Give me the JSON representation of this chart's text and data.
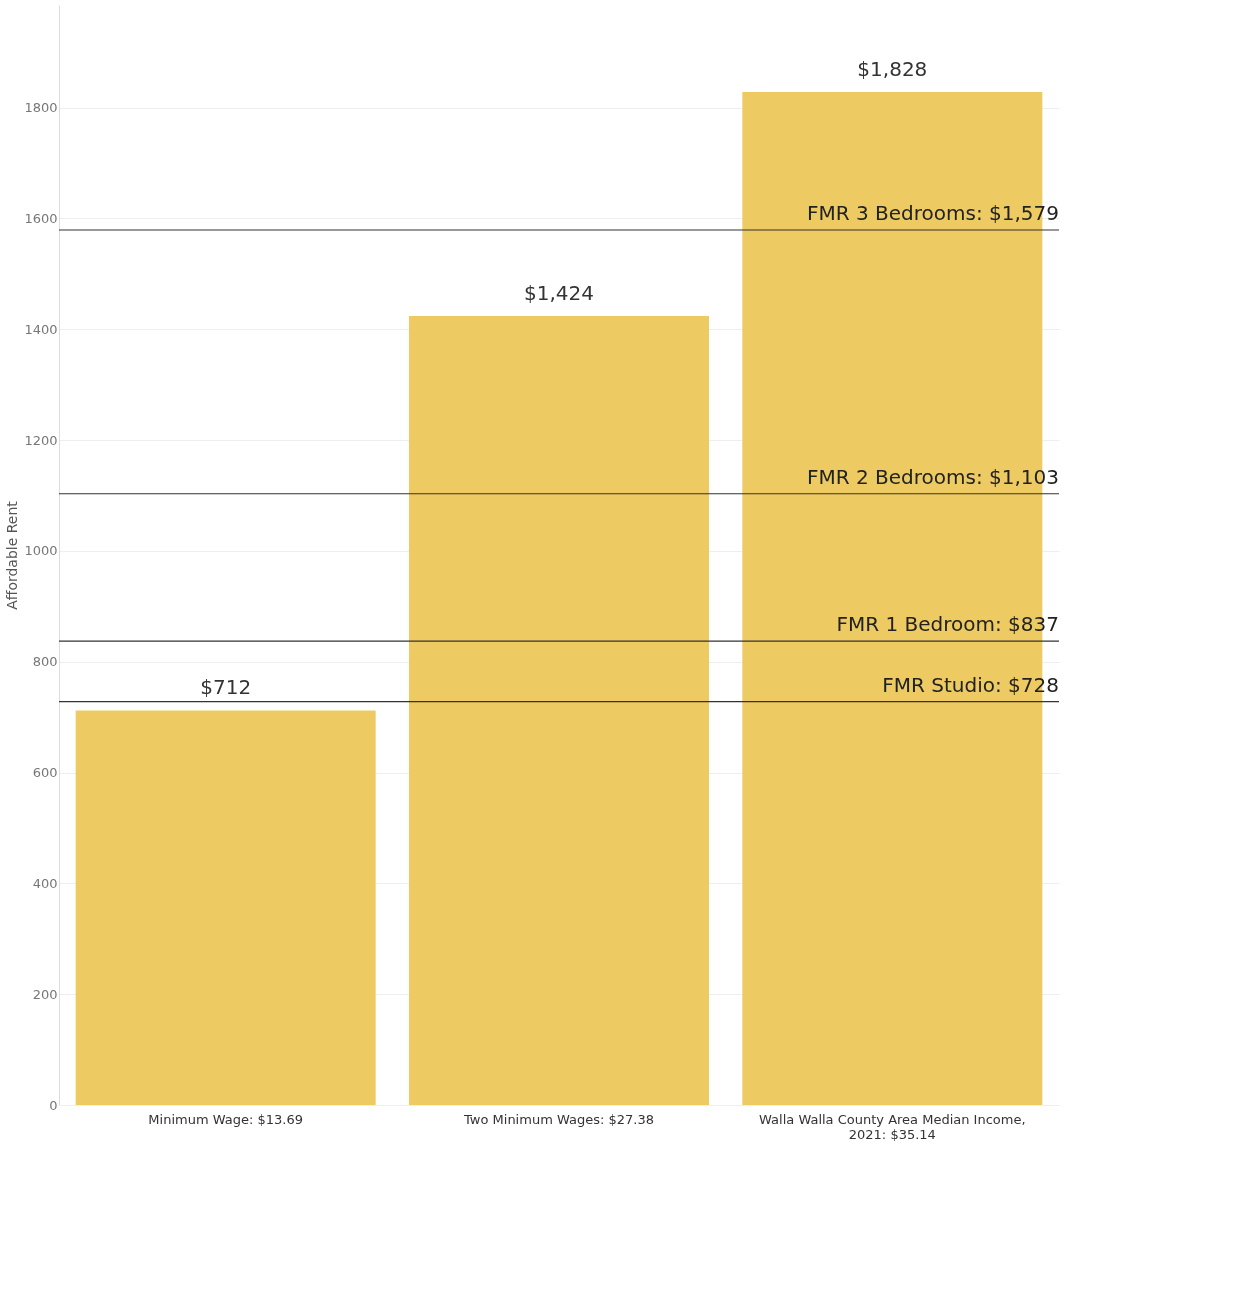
{
  "chart_data": {
    "type": "bar",
    "ylabel": "Affordable Rent",
    "categories": [
      "Minimum Wage: $13.69",
      "Two Minimum Wages: $27.38",
      "Walla Walla County Area Median Income, 2021: $35.14"
    ],
    "values": [
      712,
      1424,
      1828
    ],
    "color": "#edcb62",
    "value_labels": [
      "$712",
      "$1,424",
      "$1,828"
    ],
    "ylim": [
      0,
      1985
    ],
    "yticks": [
      0,
      200,
      400,
      600,
      800,
      1000,
      1200,
      1400,
      1600,
      1800
    ],
    "grid": "y",
    "ref_lines": [
      {
        "axis": "y",
        "value": 1579,
        "label": "FMR 3 Bedrooms: $1,579",
        "color": "#333333"
      },
      {
        "axis": "y",
        "value": 1103,
        "label": "FMR 2 Bedrooms:  $1,103",
        "color": "#333333"
      },
      {
        "axis": "y",
        "value": 837,
        "label": "FMR 1 Bedroom:  $837",
        "color": "#333333"
      },
      {
        "axis": "y",
        "value": 728,
        "label": "FMR Studio: $728",
        "color": "#333333"
      }
    ]
  }
}
